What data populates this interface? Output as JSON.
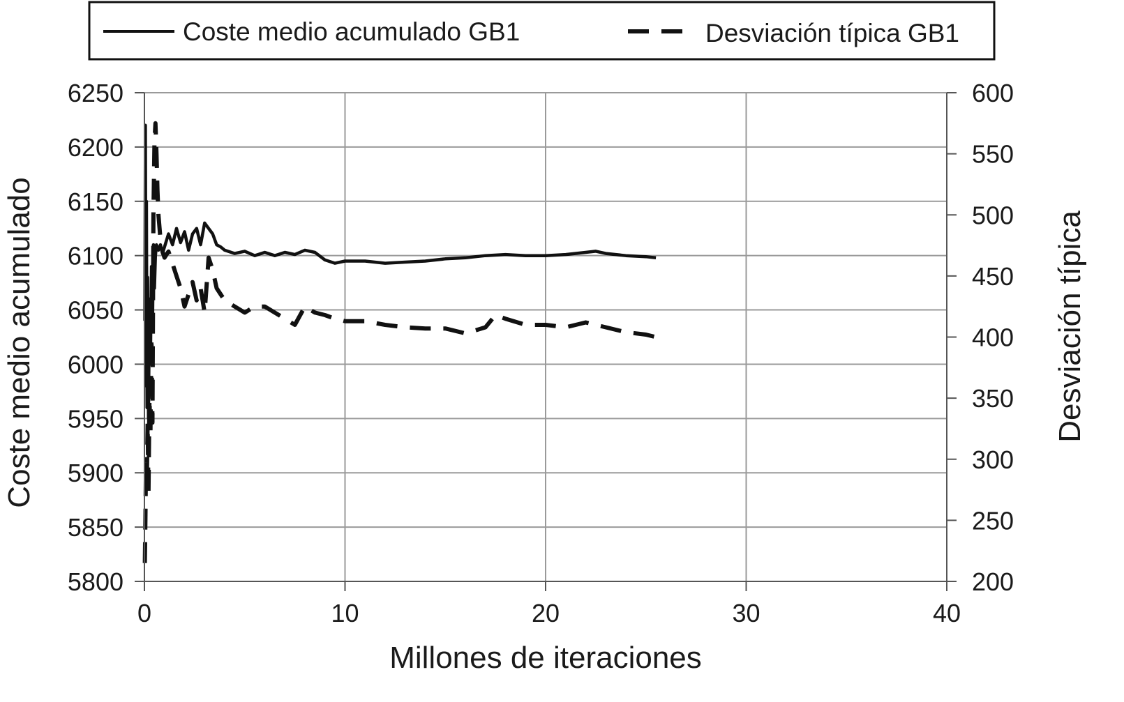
{
  "chart_data": {
    "type": "line",
    "title": "",
    "xlabel": "Millones de iteraciones",
    "ylabel": "Coste medio acumulado",
    "y2label": "Desviación típica",
    "xlim": [
      0,
      40
    ],
    "ylim": [
      5800,
      6250
    ],
    "y2lim": [
      200,
      600
    ],
    "x_ticks": [
      0,
      10,
      20,
      30,
      40
    ],
    "y_ticks": [
      5800,
      5850,
      5900,
      5950,
      6000,
      6050,
      6100,
      6150,
      6200,
      6250
    ],
    "y2_ticks": [
      200,
      250,
      300,
      350,
      400,
      450,
      500,
      550,
      600
    ],
    "grid": true,
    "legend_position": "top",
    "colors": {
      "series": "#111111",
      "grid": "#9a9a9a",
      "axis": "#555555"
    },
    "series": [
      {
        "name": "Coste medio acumulado GB1",
        "axis": "left",
        "style": "solid",
        "x": [
          0.02,
          0.05,
          0.08,
          0.1,
          0.13,
          0.16,
          0.2,
          0.25,
          0.3,
          0.35,
          0.4,
          0.45,
          0.5,
          0.55,
          0.6,
          0.7,
          0.8,
          0.9,
          1.0,
          1.2,
          1.4,
          1.6,
          1.8,
          2.0,
          2.2,
          2.4,
          2.6,
          2.8,
          3.0,
          3.2,
          3.4,
          3.6,
          3.8,
          4.0,
          4.5,
          5.0,
          5.5,
          6.0,
          6.5,
          7.0,
          7.5,
          8.0,
          8.5,
          9.0,
          9.5,
          10.0,
          11.0,
          12.0,
          13.0,
          14.0,
          15.0,
          16.0,
          17.0,
          18.0,
          19.0,
          20.0,
          21.0,
          22.0,
          22.5,
          23.0,
          24.0,
          25.0,
          25.5
        ],
        "values": [
          6040,
          6220,
          5980,
          6150,
          5960,
          6080,
          5950,
          6060,
          6000,
          6090,
          6030,
          6110,
          6070,
          6100,
          6110,
          6105,
          6110,
          6102,
          6108,
          6120,
          6110,
          6125,
          6112,
          6122,
          6105,
          6120,
          6125,
          6110,
          6130,
          6125,
          6120,
          6110,
          6108,
          6105,
          6102,
          6104,
          6100,
          6103,
          6100,
          6103,
          6101,
          6105,
          6103,
          6096,
          6093,
          6095,
          6095,
          6093,
          6094,
          6095,
          6097,
          6098,
          6100,
          6101,
          6100,
          6100,
          6101,
          6103,
          6104,
          6102,
          6100,
          6099,
          6098
        ]
      },
      {
        "name": "Desviación típica GB1",
        "axis": "right",
        "style": "dashed",
        "x": [
          0.02,
          0.05,
          0.08,
          0.12,
          0.16,
          0.2,
          0.25,
          0.3,
          0.35,
          0.4,
          0.45,
          0.5,
          0.55,
          0.6,
          0.65,
          0.7,
          0.8,
          0.9,
          1.0,
          1.2,
          1.4,
          1.6,
          1.8,
          2.0,
          2.2,
          2.4,
          2.6,
          2.8,
          3.0,
          3.2,
          3.4,
          3.6,
          3.8,
          4.0,
          4.5,
          5.0,
          5.5,
          6.0,
          6.5,
          7.0,
          7.5,
          8.0,
          8.5,
          9.0,
          9.5,
          10.0,
          11.0,
          12.0,
          13.0,
          14.0,
          15.0,
          16.0,
          17.0,
          17.5,
          18.0,
          19.0,
          20.0,
          21.0,
          22.0,
          23.0,
          24.0,
          25.0,
          25.5
        ],
        "values": [
          215,
          250,
          300,
          280,
          330,
          270,
          350,
          320,
          400,
          330,
          500,
          560,
          575,
          550,
          520,
          500,
          480,
          470,
          465,
          470,
          460,
          450,
          440,
          425,
          435,
          445,
          430,
          440,
          420,
          465,
          455,
          440,
          435,
          430,
          425,
          420,
          425,
          425,
          420,
          415,
          410,
          425,
          420,
          418,
          415,
          413,
          413,
          410,
          408,
          407,
          407,
          403,
          408,
          418,
          415,
          410,
          410,
          408,
          412,
          408,
          404,
          402,
          400
        ]
      }
    ]
  }
}
